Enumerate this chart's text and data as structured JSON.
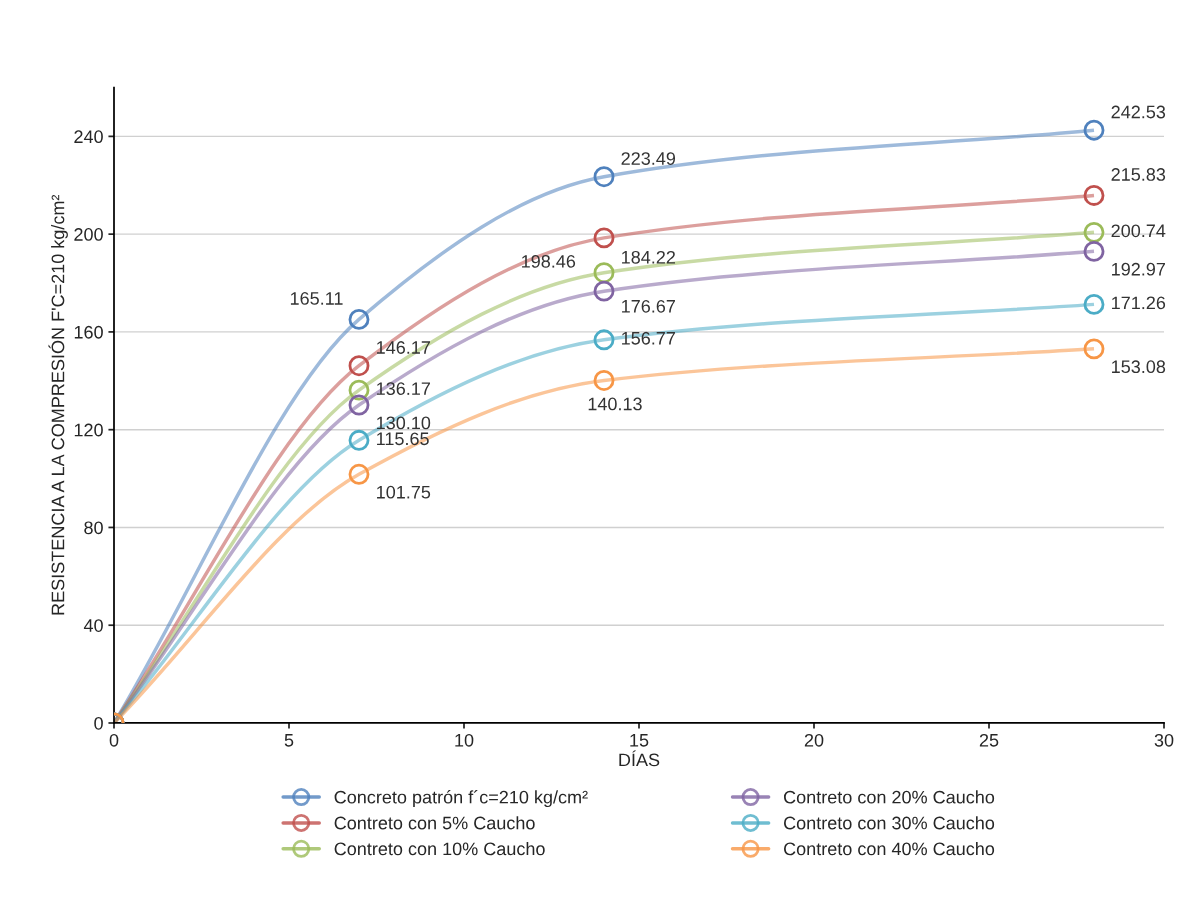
{
  "chart_data": {
    "type": "line",
    "xlabel": "DÍAS",
    "ylabel": "RESISTENCIA A LA COMPRESIÓN F'C=210 kg/cm²",
    "x": [
      0,
      7,
      14,
      28
    ],
    "series": [
      {
        "name": "Concreto patrón f´c=210 kg/cm²",
        "color": "#4f81bd",
        "values": [
          0,
          165.11,
          223.49,
          242.53
        ],
        "value_labels": [
          null,
          "165.11",
          "223.49",
          "242.53"
        ]
      },
      {
        "name": "Contreto con 5% Caucho",
        "color": "#c0504d",
        "values": [
          0,
          146.17,
          198.46,
          215.83
        ],
        "value_labels": [
          null,
          "146.17",
          "198.46",
          "215.83"
        ]
      },
      {
        "name": "Contreto con 10% Caucho",
        "color": "#9bbb59",
        "values": [
          0,
          136.17,
          184.22,
          200.74
        ],
        "value_labels": [
          null,
          "136.17",
          "184.22",
          "200.74"
        ]
      },
      {
        "name": "Contreto con 20% Caucho",
        "color": "#8064a2",
        "values": [
          0,
          130.1,
          176.67,
          192.97
        ],
        "value_labels": [
          null,
          "130.10",
          "176.67",
          "192.97"
        ]
      },
      {
        "name": "Contreto con 30% Caucho",
        "color": "#4bacc6",
        "values": [
          0,
          115.65,
          156.77,
          171.26
        ],
        "value_labels": [
          null,
          "115.65",
          "156.77",
          "171.26"
        ]
      },
      {
        "name": "Contreto con 40% Caucho",
        "color": "#f79646",
        "values": [
          0,
          101.75,
          140.13,
          153.08
        ],
        "value_labels": [
          null,
          "101.75",
          "140.13",
          "153.08"
        ]
      }
    ],
    "xlim": [
      0,
      30
    ],
    "xticks": [
      0,
      5,
      10,
      15,
      20,
      25,
      30
    ],
    "ylim": [
      0,
      260
    ],
    "yticks": [
      0,
      40,
      80,
      120,
      160,
      200,
      240
    ],
    "grid": "y",
    "legend": "bottom",
    "marker": "circle",
    "line_style": "solid"
  }
}
